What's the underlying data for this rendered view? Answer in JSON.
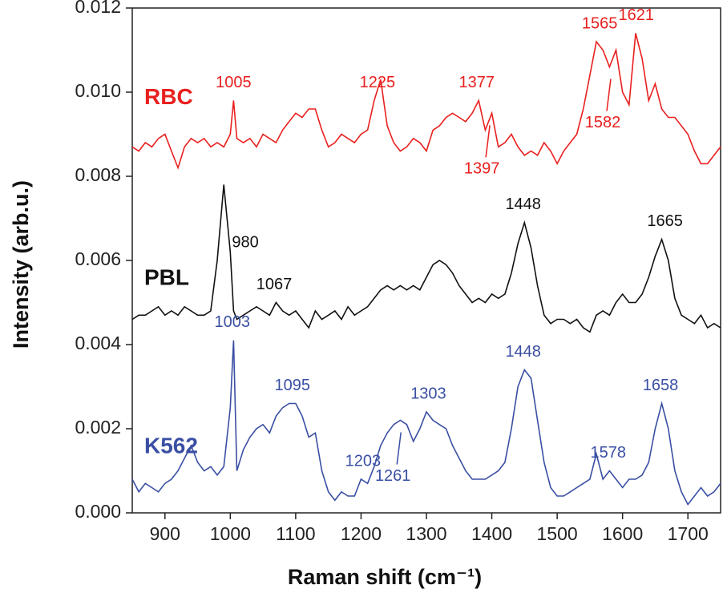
{
  "chart_data": {
    "type": "line",
    "xlabel": "Raman shift (cm⁻¹)",
    "ylabel": "Intensity (arb.u.)",
    "xlim": [
      850,
      1750
    ],
    "ylim": [
      0,
      0.012
    ],
    "xticks": [
      900,
      1000,
      1100,
      1200,
      1300,
      1400,
      1500,
      1600,
      1700
    ],
    "yticks": [
      {
        "value": 0,
        "label": "0.000"
      },
      {
        "value": 0.002,
        "label": "0.002"
      },
      {
        "value": 0.004,
        "label": "0.004"
      },
      {
        "value": 0.006,
        "label": "0.006"
      },
      {
        "value": 0.008,
        "label": "0.008"
      },
      {
        "value": 0.01,
        "label": "0.010"
      },
      {
        "value": 0.012,
        "label": "0.012"
      }
    ],
    "x": [
      850,
      860,
      870,
      880,
      890,
      900,
      910,
      920,
      930,
      940,
      950,
      960,
      970,
      980,
      990,
      1000,
      1005,
      1010,
      1020,
      1030,
      1040,
      1050,
      1060,
      1070,
      1080,
      1090,
      1100,
      1110,
      1120,
      1130,
      1140,
      1150,
      1160,
      1170,
      1180,
      1190,
      1200,
      1210,
      1220,
      1230,
      1240,
      1250,
      1260,
      1270,
      1280,
      1290,
      1300,
      1310,
      1320,
      1330,
      1340,
      1350,
      1360,
      1370,
      1380,
      1390,
      1400,
      1410,
      1420,
      1430,
      1440,
      1450,
      1460,
      1470,
      1480,
      1490,
      1500,
      1510,
      1520,
      1530,
      1540,
      1550,
      1560,
      1570,
      1580,
      1590,
      1600,
      1610,
      1620,
      1630,
      1640,
      1650,
      1660,
      1670,
      1680,
      1690,
      1700,
      1710,
      1720,
      1730,
      1740,
      1750
    ],
    "series": [
      {
        "name": "RBC",
        "color": "#e8201f",
        "values": [
          0.0087,
          0.0086,
          0.0088,
          0.0087,
          0.0089,
          0.009,
          0.0086,
          0.0082,
          0.0087,
          0.0089,
          0.0088,
          0.0089,
          0.0087,
          0.0088,
          0.0087,
          0.009,
          0.0098,
          0.0089,
          0.0088,
          0.0089,
          0.0087,
          0.009,
          0.0089,
          0.0088,
          0.0091,
          0.0093,
          0.0095,
          0.0094,
          0.0096,
          0.0096,
          0.0091,
          0.0087,
          0.0088,
          0.009,
          0.0089,
          0.0088,
          0.009,
          0.0091,
          0.0098,
          0.0103,
          0.0092,
          0.0088,
          0.0086,
          0.0087,
          0.0089,
          0.0088,
          0.0086,
          0.0091,
          0.0092,
          0.0094,
          0.0095,
          0.0094,
          0.0093,
          0.0095,
          0.0098,
          0.0091,
          0.0095,
          0.0087,
          0.0088,
          0.009,
          0.0087,
          0.0085,
          0.0086,
          0.0085,
          0.0088,
          0.0086,
          0.0083,
          0.0086,
          0.0088,
          0.009,
          0.0096,
          0.0104,
          0.0112,
          0.011,
          0.0106,
          0.011,
          0.01,
          0.0097,
          0.0114,
          0.0108,
          0.0098,
          0.0102,
          0.0096,
          0.0094,
          0.0094,
          0.0092,
          0.009,
          0.0086,
          0.0083,
          0.0083,
          0.0085,
          0.0087
        ],
        "peaks": [
          1005,
          1225,
          1377,
          1397,
          1565,
          1582,
          1621
        ]
      },
      {
        "name": "PBL",
        "color": "#111111",
        "values": [
          0.0046,
          0.0047,
          0.0047,
          0.0048,
          0.0049,
          0.0047,
          0.0048,
          0.0047,
          0.0049,
          0.0048,
          0.0047,
          0.0047,
          0.0048,
          0.006,
          0.0078,
          0.0062,
          0.0048,
          0.0046,
          0.0047,
          0.0048,
          0.0049,
          0.0048,
          0.0047,
          0.005,
          0.0048,
          0.0047,
          0.0048,
          0.0046,
          0.0044,
          0.0048,
          0.0046,
          0.0047,
          0.0048,
          0.0046,
          0.0049,
          0.0047,
          0.0048,
          0.0049,
          0.0051,
          0.0053,
          0.0054,
          0.0053,
          0.0054,
          0.0053,
          0.0054,
          0.0053,
          0.0056,
          0.0059,
          0.006,
          0.0059,
          0.0057,
          0.0054,
          0.0052,
          0.005,
          0.0051,
          0.005,
          0.0052,
          0.0051,
          0.0052,
          0.0057,
          0.0064,
          0.0069,
          0.0063,
          0.0054,
          0.0047,
          0.0045,
          0.0046,
          0.0046,
          0.0045,
          0.0046,
          0.0044,
          0.0043,
          0.0047,
          0.0048,
          0.0047,
          0.005,
          0.0052,
          0.005,
          0.005,
          0.0052,
          0.0056,
          0.0061,
          0.0065,
          0.006,
          0.0051,
          0.0047,
          0.0046,
          0.0045,
          0.0047,
          0.0044,
          0.0045,
          0.0044
        ],
        "peaks": [
          980,
          1067,
          1448,
          1665
        ]
      },
      {
        "name": "K562",
        "color": "#3a4fa3",
        "values": [
          0.0008,
          0.0005,
          0.0007,
          0.0006,
          0.0005,
          0.0007,
          0.0008,
          0.001,
          0.0013,
          0.0016,
          0.0012,
          0.001,
          0.0011,
          0.0009,
          0.0011,
          0.0025,
          0.0041,
          0.001,
          0.0015,
          0.0018,
          0.002,
          0.0021,
          0.0019,
          0.0023,
          0.0025,
          0.0026,
          0.0026,
          0.0023,
          0.0018,
          0.0019,
          0.001,
          0.0005,
          0.0003,
          0.0005,
          0.0004,
          0.0004,
          0.0008,
          0.0007,
          0.0011,
          0.0016,
          0.0019,
          0.0021,
          0.0022,
          0.0021,
          0.0017,
          0.002,
          0.0024,
          0.0022,
          0.0021,
          0.002,
          0.0016,
          0.0013,
          0.001,
          0.0008,
          0.0008,
          0.0008,
          0.0009,
          0.001,
          0.0012,
          0.002,
          0.003,
          0.0034,
          0.0032,
          0.0022,
          0.0012,
          0.0006,
          0.0004,
          0.0004,
          0.0005,
          0.0006,
          0.0007,
          0.0008,
          0.0014,
          0.0008,
          0.001,
          0.0008,
          0.0006,
          0.0008,
          0.0008,
          0.0009,
          0.0012,
          0.002,
          0.0026,
          0.002,
          0.001,
          0.0005,
          0.0002,
          0.0004,
          0.0006,
          0.0004,
          0.0005,
          0.0007
        ],
        "peaks": [
          1003,
          1095,
          1203,
          1261,
          1303,
          1448,
          1578,
          1658
        ]
      }
    ]
  }
}
